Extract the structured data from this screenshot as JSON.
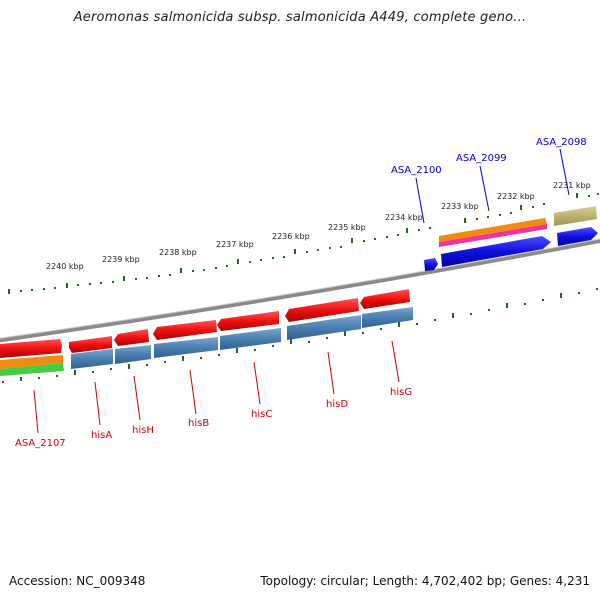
{
  "title": "Aeromonas salmonicida subsp. salmonicida A449, complete geno...",
  "footer": {
    "accession": "Accession: NC_009348",
    "summary": "Topology: circular; Length: 4,702,402 bp; Genes: 4,231"
  },
  "ticks": [
    "2231 kbp",
    "2232 kbp",
    "2233 kbp",
    "2234 kbp",
    "2235 kbp",
    "2236 kbp",
    "2237 kbp",
    "2238 kbp",
    "2239 kbp",
    "2240 kbp"
  ],
  "genes_bottom": [
    "ASA_2107",
    "hisA",
    "hisH",
    "hisB",
    "hisC",
    "hisD",
    "hisG"
  ],
  "genes_top": [
    "ASA_2100",
    "ASA_2099",
    "ASA_2098"
  ],
  "colors": {
    "backbone": "#888888",
    "red_feature": "#ee1111",
    "steel_feature": "#4a7fb0",
    "blue_feature": "#1010e0",
    "orange_feature": "#f08a10",
    "green_feature": "#44cc44",
    "magenta_feature": "#ee3399",
    "khaki_feature": "#b8ae68",
    "tick_green": "#226622"
  }
}
